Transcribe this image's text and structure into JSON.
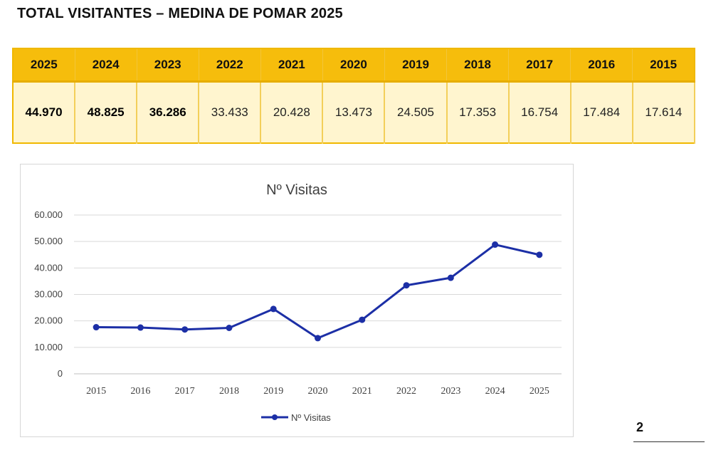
{
  "document": {
    "title": "TOTAL VISITANTES – MEDINA DE POMAR 2025",
    "page_number": "2"
  },
  "colors": {
    "header_fill": "#f6bd0c",
    "row_fill": "#fff5cf",
    "line_color": "#1c2fa6",
    "grid_color": "#d9d9d9"
  },
  "table": {
    "headers": [
      "2025",
      "2024",
      "2023",
      "2022",
      "2021",
      "2020",
      "2019",
      "2018",
      "2017",
      "2016",
      "2015"
    ],
    "values": [
      "44.970",
      "48.825",
      "36.286",
      "33.433",
      "20.428",
      "13.473",
      "24.505",
      "17.353",
      "16.754",
      "17.484",
      "17.614"
    ]
  },
  "chart_data": {
    "type": "line",
    "title": "Nº Visitas",
    "xlabel": "",
    "ylabel": "",
    "categories": [
      "2015",
      "2016",
      "2017",
      "2018",
      "2019",
      "2020",
      "2021",
      "2022",
      "2023",
      "2024",
      "2025"
    ],
    "series": [
      {
        "name": "Nº Visitas",
        "values": [
          17614,
          17484,
          16754,
          17353,
          24505,
          13473,
          20428,
          33433,
          36286,
          48825,
          44970
        ]
      }
    ],
    "ylim": [
      0,
      60000
    ],
    "yticks": [
      0,
      10000,
      20000,
      30000,
      40000,
      50000,
      60000
    ],
    "ytick_labels": [
      "0",
      "10.000",
      "20.000",
      "30.000",
      "40.000",
      "50.000",
      "60.000"
    ],
    "grid": true,
    "legend": "bottom"
  }
}
